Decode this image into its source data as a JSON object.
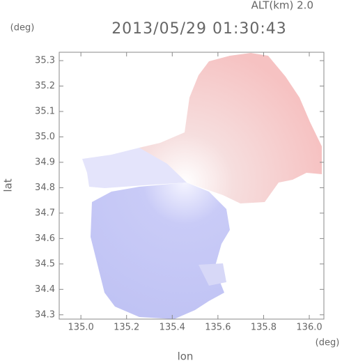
{
  "chart_data": {
    "type": "radar",
    "title": "2013/05/29 01:30:43",
    "annotation": "ALT(km) 2.0",
    "ylabel": "lat",
    "yunit": "(deg)",
    "xlabel": "lon",
    "xunit": "(deg)",
    "xlim": [
      134.905,
      136.064
    ],
    "ylim": [
      34.283,
      35.333
    ],
    "xticks": [
      {
        "value": 135.0,
        "label": "135.0"
      },
      135.2,
      135.4,
      135.6,
      135.8,
      {
        "value": 136.0,
        "label": "136.0"
      }
    ],
    "yticks": [
      34.3,
      34.4,
      34.5,
      34.6,
      34.7,
      34.8,
      34.9,
      {
        "value": 35.0,
        "label": "35.0"
      },
      35.1,
      35.2,
      35.3
    ]
  }
}
